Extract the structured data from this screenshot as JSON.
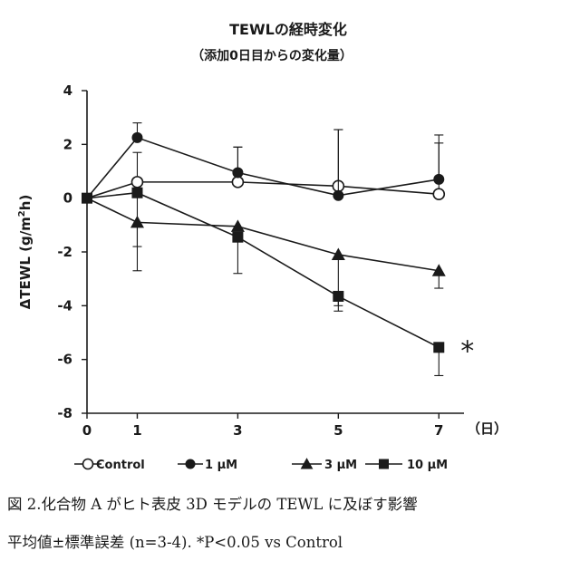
{
  "chart_data": {
    "type": "line",
    "title": "TEWLの経時変化",
    "subtitle": "（添加0日目からの変化量）",
    "ylabel": "ΔTEWL (g/m2h)",
    "x_unit": "（日）",
    "x": [
      0,
      1,
      3,
      5,
      7
    ],
    "x_ticks": [
      "0",
      "1",
      "3",
      "5",
      "7"
    ],
    "y_ticks": [
      "4",
      "2",
      "0",
      "-2",
      "-4",
      "-6",
      "-8"
    ],
    "ylim": [
      -8,
      4
    ],
    "xlim": [
      0,
      7.5
    ],
    "grid": false,
    "legend_position": "bottom",
    "series": [
      {
        "name": "Control",
        "marker": "open-circle",
        "values": [
          0,
          0.6,
          0.6,
          0.45,
          0.15
        ],
        "error": [
          0,
          1.1,
          1.3,
          2.1,
          1.9
        ],
        "error_dir": "up"
      },
      {
        "name": "1 μM",
        "marker": "filled-circle",
        "values": [
          0,
          2.25,
          0.95,
          0.1,
          0.7
        ],
        "error": [
          0,
          0.55,
          0.95,
          2.45,
          1.65
        ],
        "error_dir": "up"
      },
      {
        "name": "3 μM",
        "marker": "filled-triangle",
        "values": [
          0,
          -0.9,
          -1.05,
          -2.1,
          -2.7
        ],
        "error": [
          0,
          1.8,
          0,
          1.9,
          0.65
        ],
        "error_dir": "down"
      },
      {
        "name": "10 μM",
        "marker": "filled-square",
        "values": [
          0,
          0.2,
          -1.45,
          -3.65,
          -5.55
        ],
        "error": [
          0,
          2.0,
          1.35,
          0.55,
          1.05
        ],
        "error_dir": "down"
      }
    ],
    "annotations": [
      {
        "text": "*",
        "x": 7,
        "y": -5.55
      }
    ]
  },
  "caption": {
    "line1": "図 2.化合物 A がヒト表皮 3D モデルの TEWL に及ぼす影響",
    "line2": "平均値±標準誤差 (n=3-4). *P<0.05 vs Control"
  }
}
